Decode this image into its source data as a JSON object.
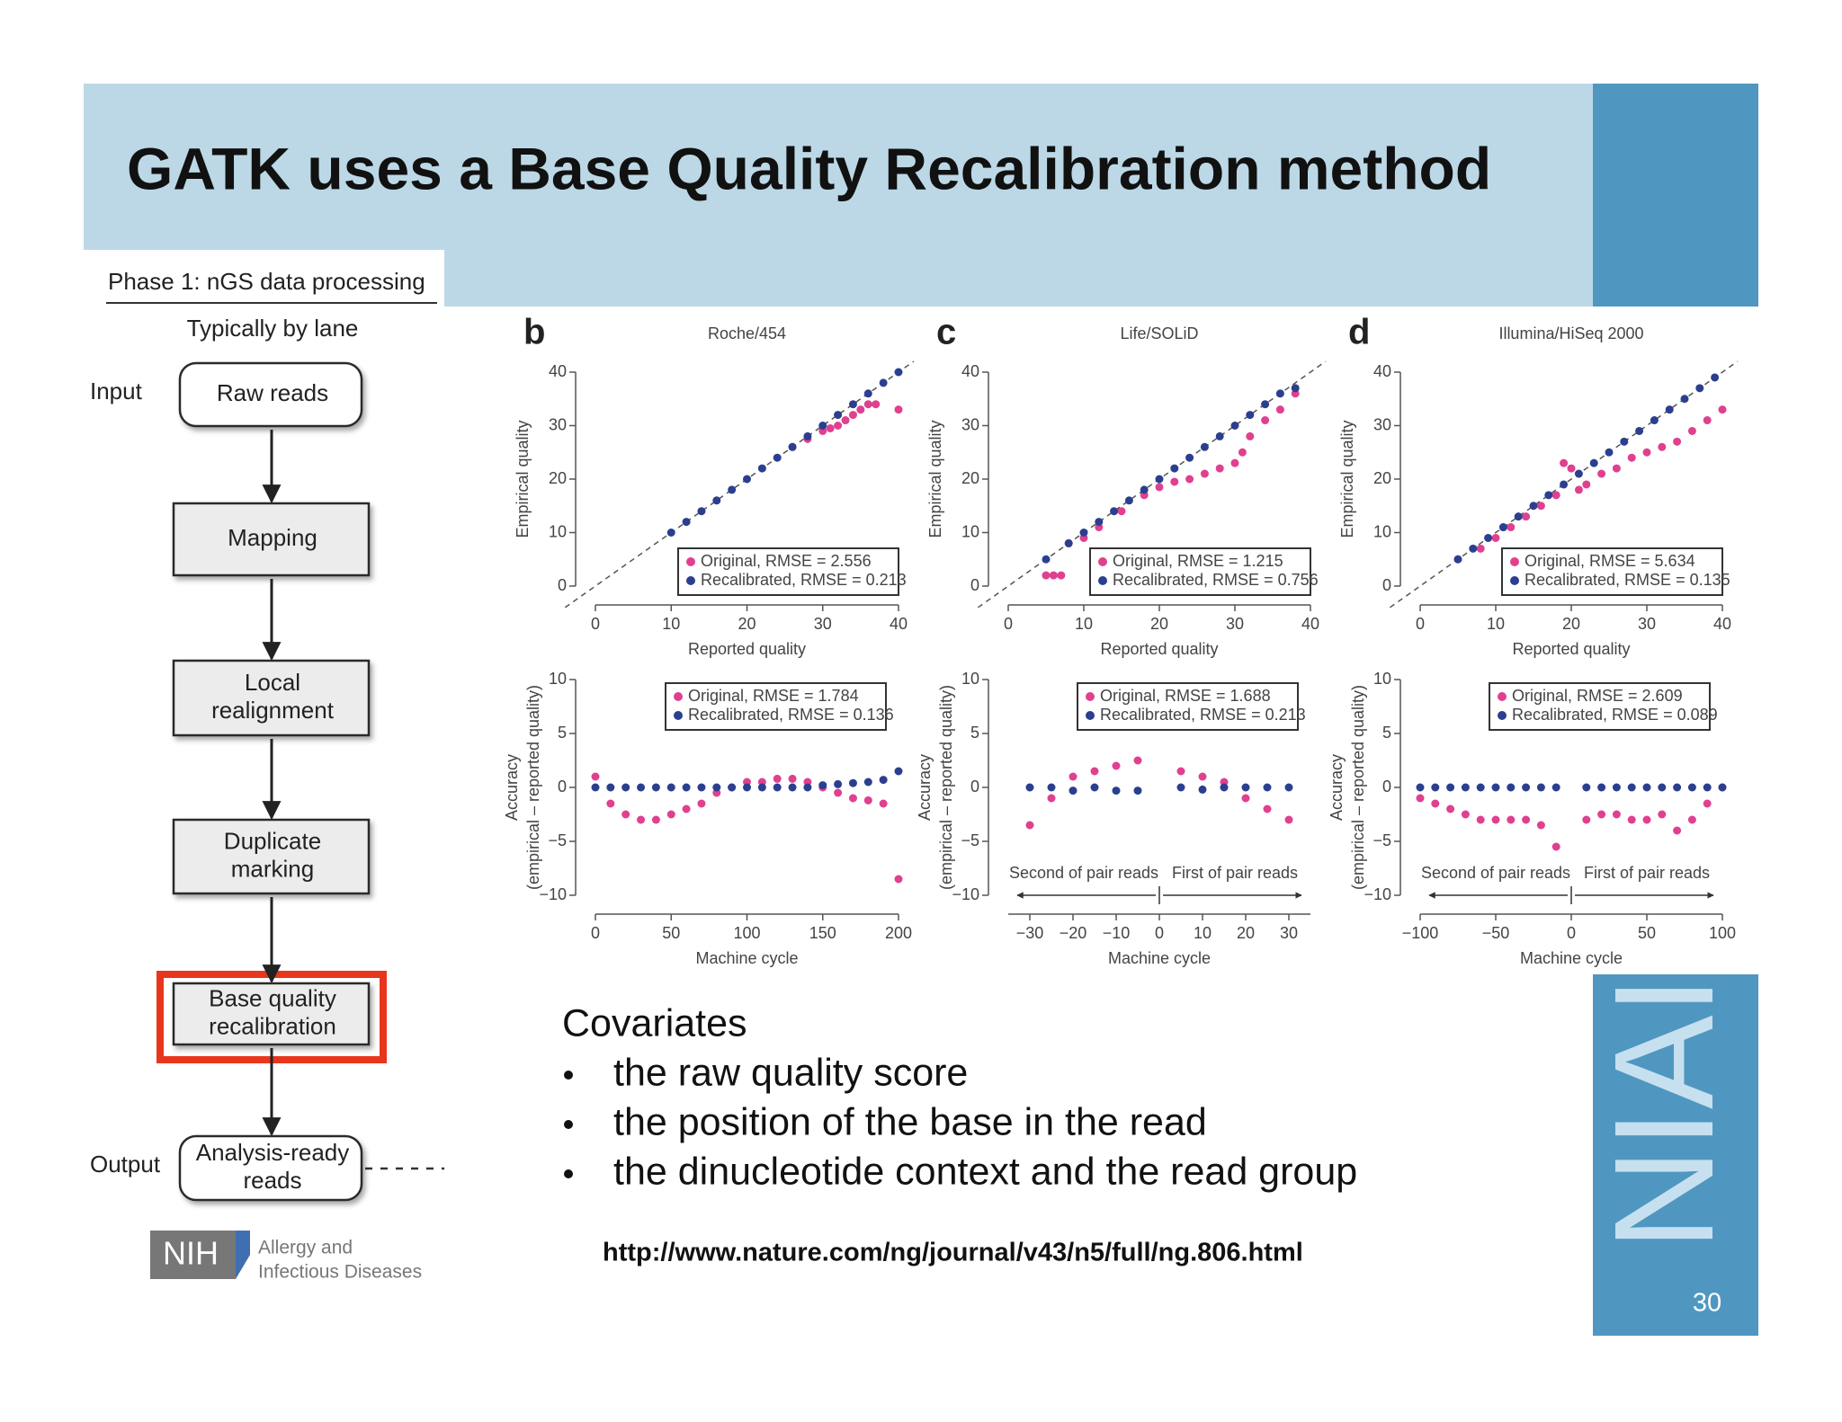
{
  "slide": {
    "title": "GATK uses a Base Quality Recalibration method",
    "page_number": 30
  },
  "flowchart": {
    "phase": "Phase 1: nGS data processing",
    "subtitle": "Typically by lane",
    "input_label": "Input",
    "output_label": "Output",
    "steps": [
      [
        "Raw reads"
      ],
      [
        "Mapping"
      ],
      [
        "Local",
        "realignment"
      ],
      [
        "Duplicate",
        "marking"
      ],
      [
        "Base quality",
        "recalibration"
      ],
      [
        "Analysis-ready",
        "reads"
      ]
    ]
  },
  "logo": {
    "abbr": "NIH",
    "lines": [
      "Allergy and",
      "Infectious Diseases"
    ],
    "side_text": "NIAI"
  },
  "covariates": {
    "heading": "Covariates",
    "items": [
      "the raw quality score",
      "the position of the base in the read",
      "the dinucleotide context and the read group"
    ]
  },
  "url": "http://www.nature.com/ng/journal/v43/n5/full/ng.806.html",
  "chart_data": [
    {
      "type": "scatter",
      "panel": "b",
      "title": "Roche/454",
      "x_label": "Reported quality",
      "y_label": [
        "Empirical quality"
      ],
      "diagonal": true,
      "legend": "lower right",
      "xlim": [
        0,
        40
      ],
      "ylim": [
        0,
        40
      ],
      "xticks": [
        0,
        10,
        20,
        30,
        40
      ],
      "yticks": [
        0,
        10,
        20,
        30,
        40
      ],
      "series": [
        {
          "name": "Original, RMSE = 2.556",
          "color": "#e0408f",
          "x": [
            26,
            28,
            30,
            31,
            32,
            33,
            34,
            35,
            36,
            37,
            40
          ],
          "values": [
            26,
            27.5,
            29,
            29.5,
            30,
            31,
            32,
            33,
            34,
            34,
            33
          ]
        },
        {
          "name": "Recalibrated, RMSE = 0.213",
          "color": "#2b3f8f",
          "x": [
            10,
            12,
            14,
            16,
            18,
            20,
            22,
            24,
            26,
            28,
            30,
            32,
            34,
            36,
            38,
            40
          ],
          "values": [
            10,
            12,
            14,
            16,
            18,
            20,
            22,
            24,
            26,
            28,
            30,
            32,
            34,
            36,
            38,
            40
          ]
        }
      ]
    },
    {
      "type": "scatter",
      "x_label": "Machine cycle",
      "y_label": [
        "Accuracy",
        "(empirical – reported quality)"
      ],
      "legend": "upper right",
      "xlim": [
        0,
        200
      ],
      "ylim": [
        -10,
        10
      ],
      "xticks": [
        0,
        50,
        100,
        150,
        200
      ],
      "yticks": [
        {
          "value": -10,
          "label": "−10"
        },
        {
          "value": -5,
          "label": "−5"
        },
        0,
        5,
        10
      ],
      "series": [
        {
          "name": "Original, RMSE = 1.784",
          "color": "#e0408f",
          "x": [
            0,
            10,
            20,
            30,
            40,
            50,
            60,
            70,
            80,
            90,
            100,
            110,
            120,
            130,
            140,
            150,
            160,
            170,
            180,
            190,
            200
          ],
          "values": [
            1,
            -1.5,
            -2.5,
            -3,
            -3,
            -2.5,
            -2,
            -1.5,
            -0.5,
            0,
            0.5,
            0.5,
            0.8,
            0.8,
            0.5,
            0,
            -0.5,
            -1,
            -1.2,
            -1.5,
            -8.5
          ]
        },
        {
          "name": "Recalibrated, RMSE = 0.136",
          "color": "#2b3f8f",
          "x": [
            0,
            10,
            20,
            30,
            40,
            50,
            60,
            70,
            80,
            90,
            100,
            110,
            120,
            130,
            140,
            150,
            160,
            170,
            180,
            190,
            200
          ],
          "values": [
            0,
            0,
            0,
            0,
            0,
            0,
            0,
            0,
            0,
            0,
            0,
            0,
            0,
            0,
            0,
            0.2,
            0.3,
            0.4,
            0.5,
            0.7,
            1.5
          ]
        }
      ]
    },
    {
      "type": "scatter",
      "panel": "c",
      "title": "Life/SOLiD",
      "x_label": "Reported quality",
      "y_label": [
        "Empirical quality"
      ],
      "diagonal": true,
      "legend": "lower right",
      "xlim": [
        0,
        40
      ],
      "ylim": [
        0,
        40
      ],
      "xticks": [
        0,
        10,
        20,
        30,
        40
      ],
      "yticks": [
        0,
        10,
        20,
        30,
        40
      ],
      "series": [
        {
          "name": "Original, RMSE = 1.215",
          "color": "#e0408f",
          "x": [
            5,
            6,
            7,
            8,
            10,
            12,
            15,
            18,
            20,
            22,
            24,
            26,
            28,
            30,
            31,
            32,
            34,
            36,
            38
          ],
          "values": [
            2,
            2,
            2,
            8,
            9,
            11,
            14,
            17,
            18.5,
            19.5,
            20,
            21,
            22,
            23,
            25,
            28,
            31,
            33,
            36
          ]
        },
        {
          "name": "Recalibrated, RMSE = 0.756",
          "color": "#2b3f8f",
          "x": [
            5,
            8,
            10,
            12,
            14,
            16,
            18,
            20,
            22,
            24,
            26,
            28,
            30,
            32,
            34,
            36,
            38
          ],
          "values": [
            5,
            8,
            10,
            12,
            14,
            16,
            18,
            20,
            22,
            24,
            26,
            28,
            30,
            32,
            34,
            36,
            37
          ]
        }
      ]
    },
    {
      "type": "scatter",
      "x_label": "Machine cycle",
      "y_label": [
        "Accuracy",
        "(empirical – reported quality)"
      ],
      "legend": "upper right",
      "annotations": [
        "Second of pair reads",
        "First of pair reads"
      ],
      "xlim": [
        -35,
        35
      ],
      "ylim": [
        -10,
        10
      ],
      "xticks": [
        {
          "value": -30,
          "label": "−30"
        },
        {
          "value": -20,
          "label": "−20"
        },
        {
          "value": -10,
          "label": "−10"
        },
        0,
        10,
        20,
        30
      ],
      "yticks": [
        {
          "value": -10,
          "label": "−10"
        },
        {
          "value": -5,
          "label": "−5"
        },
        0,
        5,
        10
      ],
      "series": [
        {
          "name": "Original, RMSE = 1.688",
          "color": "#e0408f",
          "x": [
            -30,
            -25,
            -20,
            -15,
            -10,
            -5,
            5,
            10,
            15,
            20,
            25,
            30
          ],
          "values": [
            -3.5,
            -1,
            1,
            1.5,
            2,
            2.5,
            1.5,
            1,
            0.5,
            -1,
            -2,
            -3
          ]
        },
        {
          "name": "Recalibrated, RMSE = 0.213",
          "color": "#2b3f8f",
          "x": [
            -30,
            -25,
            -20,
            -15,
            -10,
            -5,
            5,
            10,
            15,
            20,
            25,
            30
          ],
          "values": [
            0,
            0,
            -0.3,
            0,
            -0.3,
            -0.3,
            0,
            -0.2,
            0,
            0,
            0,
            0
          ]
        }
      ]
    },
    {
      "type": "scatter",
      "panel": "d",
      "title": "Illumina/HiSeq 2000",
      "x_label": "Reported quality",
      "y_label": [
        "Empirical quality"
      ],
      "diagonal": true,
      "legend": "lower right",
      "xlim": [
        0,
        40
      ],
      "ylim": [
        0,
        40
      ],
      "xticks": [
        0,
        10,
        20,
        30,
        40
      ],
      "yticks": [
        0,
        10,
        20,
        30,
        40
      ],
      "series": [
        {
          "name": "Original, RMSE = 5.634",
          "color": "#e0408f",
          "x": [
            5,
            8,
            10,
            12,
            14,
            16,
            18,
            19,
            20,
            21,
            22,
            24,
            26,
            28,
            30,
            32,
            34,
            36,
            38,
            40
          ],
          "values": [
            5,
            7,
            9,
            11,
            13,
            15,
            17,
            23,
            22,
            18,
            19,
            21,
            22,
            24,
            25,
            26,
            27,
            29,
            31,
            33
          ]
        },
        {
          "name": "Recalibrated, RMSE = 0.135",
          "color": "#2b3f8f",
          "x": [
            5,
            7,
            9,
            11,
            13,
            15,
            17,
            19,
            21,
            23,
            25,
            27,
            29,
            31,
            33,
            35,
            37,
            39
          ],
          "values": [
            5,
            7,
            9,
            11,
            13,
            15,
            17,
            19,
            21,
            23,
            25,
            27,
            29,
            31,
            33,
            35,
            37,
            39
          ]
        }
      ]
    },
    {
      "type": "scatter",
      "x_label": "Machine cycle",
      "y_label": [
        "Accuracy",
        "(empirical – reported quality)"
      ],
      "legend": "upper right",
      "annotations": [
        "Second of pair reads",
        "First of pair reads"
      ],
      "xlim": [
        -100,
        100
      ],
      "ylim": [
        -10,
        10
      ],
      "xticks": [
        {
          "value": -100,
          "label": "−100"
        },
        {
          "value": -50,
          "label": "−50"
        },
        0,
        50,
        100
      ],
      "yticks": [
        {
          "value": -10,
          "label": "−10"
        },
        {
          "value": -5,
          "label": "−5"
        },
        0,
        5,
        10
      ],
      "series": [
        {
          "name": "Original, RMSE = 2.609",
          "color": "#e0408f",
          "x": [
            -100,
            -90,
            -80,
            -70,
            -60,
            -50,
            -40,
            -30,
            -20,
            -10,
            10,
            20,
            30,
            40,
            50,
            60,
            70,
            80,
            90,
            100
          ],
          "values": [
            -1,
            -1.5,
            -2,
            -2.5,
            -3,
            -3,
            -3,
            -3,
            -3.5,
            -5.5,
            -3,
            -2.5,
            -2.5,
            -3,
            -3,
            -2.5,
            -4,
            -3,
            -1.5,
            0
          ]
        },
        {
          "name": "Recalibrated, RMSE = 0.089",
          "color": "#2b3f8f",
          "x": [
            -100,
            -90,
            -80,
            -70,
            -60,
            -50,
            -40,
            -30,
            -20,
            -10,
            10,
            20,
            30,
            40,
            50,
            60,
            70,
            80,
            90,
            100
          ],
          "values": [
            0,
            0,
            0,
            0,
            0,
            0,
            0,
            0,
            0,
            0,
            0,
            0,
            0,
            0,
            0,
            0,
            0,
            0,
            0,
            0
          ]
        }
      ]
    }
  ]
}
